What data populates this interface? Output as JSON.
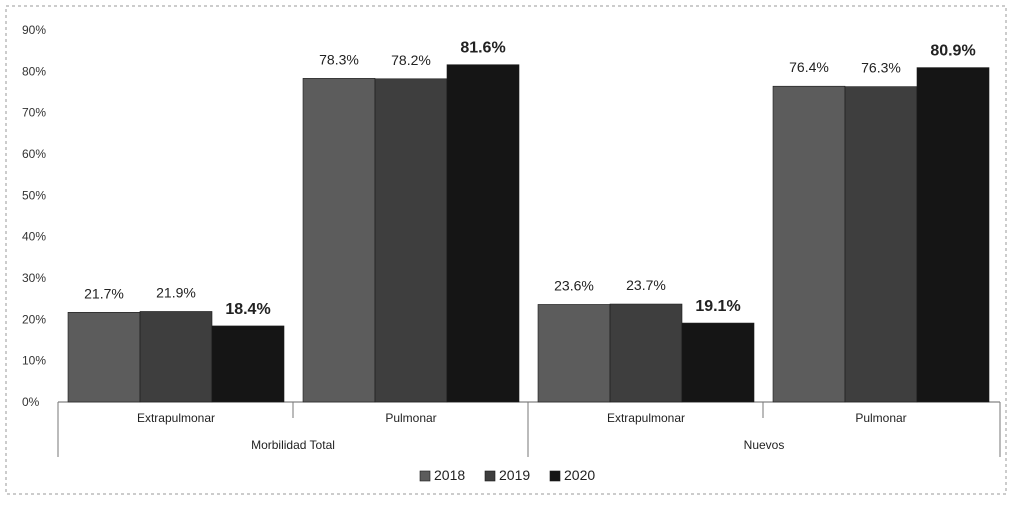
{
  "chart_data": {
    "type": "bar",
    "groups": [
      {
        "label": "Morbilidad Total",
        "categories": [
          "Extrapulmonar",
          "Pulmonar"
        ]
      },
      {
        "label": "Nuevos",
        "categories": [
          "Extrapulmonar",
          "Pulmonar"
        ]
      }
    ],
    "series": [
      {
        "name": "2018",
        "values": [
          21.7,
          78.3,
          23.6,
          76.4
        ],
        "labels": [
          "21.7%",
          "78.3%",
          "23.6%",
          "76.4%"
        ],
        "color": "#5c5c5c",
        "bold": false
      },
      {
        "name": "2019",
        "values": [
          21.9,
          78.2,
          23.7,
          76.3
        ],
        "labels": [
          "21.9%",
          "78.2%",
          "23.7%",
          "76.3%"
        ],
        "color": "#3e3e3e",
        "bold": false
      },
      {
        "name": "2020",
        "values": [
          18.4,
          81.6,
          19.1,
          80.9
        ],
        "labels": [
          "18.4%",
          "81.6%",
          "19.1%",
          "80.9%"
        ],
        "color": "#151515",
        "bold": true
      }
    ],
    "ylim": [
      0,
      90
    ],
    "yticks": [
      "0%",
      "10%",
      "20%",
      "30%",
      "40%",
      "50%",
      "60%",
      "70%",
      "80%",
      "90%"
    ],
    "grid": false,
    "legend_position": "bottom-center"
  }
}
